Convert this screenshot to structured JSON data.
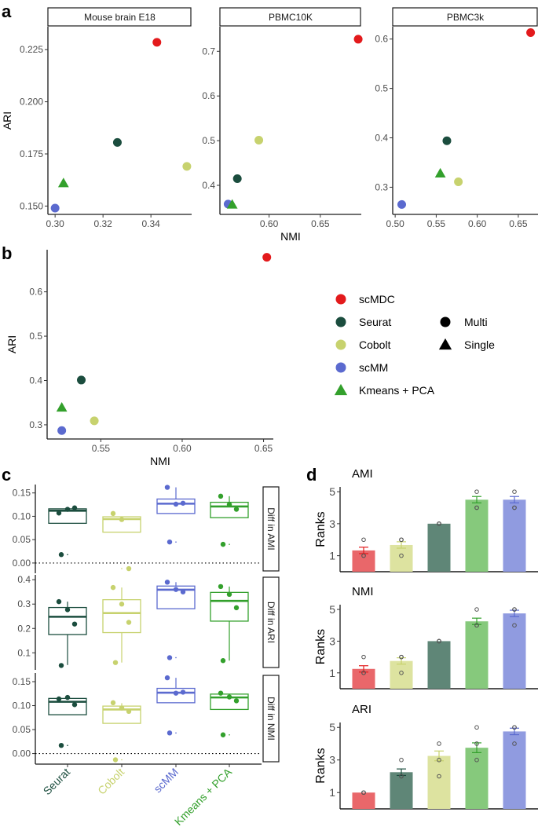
{
  "panel_letters": {
    "a": "a",
    "b": "b",
    "c": "c",
    "d": "d"
  },
  "methods": [
    {
      "name": "scMDC",
      "color": "#e31a1c",
      "shape": "circle"
    },
    {
      "name": "Seurat",
      "color": "#1b4d3e",
      "shape": "circle"
    },
    {
      "name": "Cobolt",
      "color": "#c7d26e",
      "shape": "circle"
    },
    {
      "name": "scMM",
      "color": "#5b6acf",
      "shape": "circle"
    },
    {
      "name": "Kmeans + PCA",
      "color": "#33a02c",
      "shape": "triangle"
    }
  ],
  "shape_legend": [
    {
      "label": "Multi",
      "shape": "circle"
    },
    {
      "label": "Single",
      "shape": "triangle"
    }
  ],
  "chart_data": [
    {
      "id": "a1",
      "type": "scatter",
      "title": "Mouse brain E18",
      "xlabel": "",
      "ylabel": "ARI",
      "xlim": [
        0.297,
        0.357
      ],
      "ylim": [
        0.146,
        0.236
      ],
      "xticks": [
        {
          "v": 0.3,
          "l": "0.30"
        },
        {
          "v": 0.32,
          "l": "0.32"
        },
        {
          "v": 0.34,
          "l": "0.34"
        }
      ],
      "yticks": [
        {
          "v": 0.15,
          "l": "0.150"
        },
        {
          "v": 0.175,
          "l": "0.175"
        },
        {
          "v": 0.2,
          "l": "0.200"
        },
        {
          "v": 0.225,
          "l": "0.225"
        }
      ],
      "points": [
        {
          "method": "scMDC",
          "x": 0.3425,
          "y": 0.2285
        },
        {
          "method": "Seurat",
          "x": 0.326,
          "y": 0.1805
        },
        {
          "method": "Cobolt",
          "x": 0.355,
          "y": 0.169
        },
        {
          "method": "scMM",
          "x": 0.3,
          "y": 0.149
        },
        {
          "method": "Kmeans + PCA",
          "x": 0.3035,
          "y": 0.161
        }
      ]
    },
    {
      "id": "a2",
      "type": "scatter",
      "title": "PBMC10K",
      "xlabel": "NMI",
      "ylabel": "",
      "xlim": [
        0.552,
        0.69
      ],
      "ylim": [
        0.335,
        0.755
      ],
      "xticks": [
        {
          "v": 0.6,
          "l": "0.60"
        },
        {
          "v": 0.65,
          "l": "0.65"
        }
      ],
      "yticks": [
        {
          "v": 0.4,
          "l": "0.4"
        },
        {
          "v": 0.5,
          "l": "0.5"
        },
        {
          "v": 0.6,
          "l": "0.6"
        },
        {
          "v": 0.7,
          "l": "0.7"
        }
      ],
      "points": [
        {
          "method": "scMDC",
          "x": 0.687,
          "y": 0.727
        },
        {
          "method": "Seurat",
          "x": 0.569,
          "y": 0.415
        },
        {
          "method": "Cobolt",
          "x": 0.59,
          "y": 0.501
        },
        {
          "method": "scMM",
          "x": 0.56,
          "y": 0.358
        },
        {
          "method": "Kmeans + PCA",
          "x": 0.564,
          "y": 0.357
        }
      ]
    },
    {
      "id": "a3",
      "type": "scatter",
      "title": "PBMC3k",
      "xlabel": "",
      "ylabel": "",
      "xlim": [
        0.497,
        0.674
      ],
      "ylim": [
        0.245,
        0.625
      ],
      "xticks": [
        {
          "v": 0.5,
          "l": "0.50"
        },
        {
          "v": 0.55,
          "l": "0.55"
        },
        {
          "v": 0.6,
          "l": "0.60"
        },
        {
          "v": 0.65,
          "l": "0.65"
        }
      ],
      "yticks": [
        {
          "v": 0.3,
          "l": "0.3"
        },
        {
          "v": 0.4,
          "l": "0.4"
        },
        {
          "v": 0.5,
          "l": "0.5"
        },
        {
          "v": 0.6,
          "l": "0.6"
        }
      ],
      "points": [
        {
          "method": "scMDC",
          "x": 0.665,
          "y": 0.613
        },
        {
          "method": "Seurat",
          "x": 0.563,
          "y": 0.394
        },
        {
          "method": "Cobolt",
          "x": 0.577,
          "y": 0.311
        },
        {
          "method": "scMM",
          "x": 0.508,
          "y": 0.265
        },
        {
          "method": "Kmeans + PCA",
          "x": 0.555,
          "y": 0.328
        }
      ]
    },
    {
      "id": "b",
      "type": "scatter",
      "title": "",
      "xlabel": "NMI",
      "ylabel": "ARI",
      "xlim": [
        0.517,
        0.656
      ],
      "ylim": [
        0.268,
        0.695
      ],
      "xticks": [
        {
          "v": 0.55,
          "l": "0.55"
        },
        {
          "v": 0.6,
          "l": "0.60"
        },
        {
          "v": 0.65,
          "l": "0.65"
        }
      ],
      "yticks": [
        {
          "v": 0.3,
          "l": "0.3"
        },
        {
          "v": 0.4,
          "l": "0.4"
        },
        {
          "v": 0.5,
          "l": "0.5"
        },
        {
          "v": 0.6,
          "l": "0.6"
        }
      ],
      "points": [
        {
          "method": "scMDC",
          "x": 0.652,
          "y": 0.678
        },
        {
          "method": "Seurat",
          "x": 0.538,
          "y": 0.401
        },
        {
          "method": "Cobolt",
          "x": 0.546,
          "y": 0.309
        },
        {
          "method": "scMM",
          "x": 0.526,
          "y": 0.287
        },
        {
          "method": "Kmeans + PCA",
          "x": 0.526,
          "y": 0.339
        }
      ]
    },
    {
      "id": "c",
      "type": "box",
      "xlabel": "",
      "ylabel": "",
      "categories": [
        "Seurat",
        "Cobolt",
        "scMM",
        "Kmeans + PCA"
      ],
      "category_colors": [
        "#1b4d3e",
        "#c7d26e",
        "#5b6acf",
        "#33a02c"
      ],
      "facets": [
        {
          "label": "Diff in AMI",
          "ylim": [
            -0.022,
            0.168
          ],
          "hline": 0,
          "yticks": [
            {
              "v": 0.0,
              "l": "0.00"
            },
            {
              "v": 0.05,
              "l": "0.05"
            },
            {
              "v": 0.1,
              "l": "0.10"
            },
            {
              "v": 0.15,
              "l": "0.15"
            }
          ],
          "boxes": [
            {
              "q1": 0.085,
              "med": 0.112,
              "q3": 0.116,
              "lo": 0.085,
              "hi": 0.116,
              "outliers": [
                0.018
              ],
              "points": [
                0.107,
                0.115,
                0.118,
                0.018
              ]
            },
            {
              "q1": 0.066,
              "med": 0.094,
              "q3": 0.099,
              "lo": 0.066,
              "hi": 0.099,
              "outliers": [
                -0.012
              ],
              "points": [
                0.106,
                0.093,
                -0.012
              ]
            },
            {
              "q1": 0.106,
              "med": 0.127,
              "q3": 0.137,
              "lo": 0.106,
              "hi": 0.162,
              "outliers": [
                0.045
              ],
              "points": [
                0.162,
                0.126,
                0.128,
                0.045
              ]
            },
            {
              "q1": 0.097,
              "med": 0.121,
              "q3": 0.13,
              "lo": 0.097,
              "hi": 0.143,
              "outliers": [
                0.04
              ],
              "points": [
                0.143,
                0.125,
                0.115,
                0.04
              ]
            }
          ]
        },
        {
          "label": "Diff in ARI",
          "ylim": [
            0.03,
            0.42
          ],
          "hline": null,
          "yticks": [
            {
              "v": 0.1,
              "l": "0.1"
            },
            {
              "v": 0.2,
              "l": "0.2"
            },
            {
              "v": 0.3,
              "l": "0.3"
            },
            {
              "v": 0.4,
              "l": "0.4"
            }
          ],
          "boxes": [
            {
              "q1": 0.175,
              "med": 0.248,
              "q3": 0.286,
              "lo": 0.05,
              "hi": 0.31,
              "outliers": [],
              "points": [
                0.31,
                0.277,
                0.218,
                0.048
              ]
            },
            {
              "q1": 0.183,
              "med": 0.263,
              "q3": 0.318,
              "lo": 0.06,
              "hi": 0.368,
              "outliers": [],
              "points": [
                0.368,
                0.3,
                0.225,
                0.06
              ]
            },
            {
              "q1": 0.281,
              "med": 0.359,
              "q3": 0.374,
              "lo": 0.281,
              "hi": 0.39,
              "outliers": [
                0.08
              ],
              "points": [
                0.39,
                0.36,
                0.35,
                0.08
              ]
            },
            {
              "q1": 0.23,
              "med": 0.313,
              "q3": 0.348,
              "lo": 0.068,
              "hi": 0.372,
              "outliers": [],
              "points": [
                0.372,
                0.34,
                0.285,
                0.068
              ]
            }
          ]
        },
        {
          "label": "Diff in NMI",
          "ylim": [
            -0.022,
            0.168
          ],
          "hline": 0,
          "yticks": [
            {
              "v": 0.0,
              "l": "0.00"
            },
            {
              "v": 0.05,
              "l": "0.05"
            },
            {
              "v": 0.1,
              "l": "0.10"
            },
            {
              "v": 0.15,
              "l": "0.15"
            }
          ],
          "boxes": [
            {
              "q1": 0.081,
              "med": 0.108,
              "q3": 0.115,
              "lo": 0.081,
              "hi": 0.115,
              "outliers": [
                0.017
              ],
              "points": [
                0.114,
                0.117,
                0.102,
                0.017
              ]
            },
            {
              "q1": 0.063,
              "med": 0.092,
              "q3": 0.099,
              "lo": 0.063,
              "hi": 0.105,
              "outliers": [
                -0.013
              ],
              "points": [
                0.106,
                0.095,
                0.088,
                -0.013
              ]
            },
            {
              "q1": 0.106,
              "med": 0.127,
              "q3": 0.136,
              "lo": 0.106,
              "hi": 0.158,
              "outliers": [
                0.043
              ],
              "points": [
                0.158,
                0.126,
                0.128,
                0.043
              ]
            },
            {
              "q1": 0.092,
              "med": 0.117,
              "q3": 0.124,
              "lo": 0.092,
              "hi": 0.124,
              "outliers": [
                0.039
              ],
              "points": [
                0.126,
                0.118,
                0.11,
                0.039
              ]
            }
          ]
        }
      ]
    },
    {
      "id": "d",
      "type": "bar",
      "ylabel": "Ranks",
      "ylim": [
        0,
        5.3
      ],
      "yticks": [
        {
          "v": 1,
          "l": "1"
        },
        {
          "v": 3,
          "l": "3"
        },
        {
          "v": 5,
          "l": "5"
        }
      ],
      "subplots": [
        {
          "title": "AMI",
          "bars": [
            {
              "method": "scMDC",
              "mean": 1.33,
              "se": 0.2,
              "points": [
                1,
                1,
                2
              ]
            },
            {
              "method": "Cobolt",
              "mean": 1.67,
              "se": 0.2,
              "points": [
                2,
                2,
                1
              ]
            },
            {
              "method": "Seurat",
              "mean": 3.0,
              "se": 0.0,
              "points": [
                3,
                3,
                3
              ]
            },
            {
              "method": "Kmeans + PCA",
              "mean": 4.5,
              "se": 0.2,
              "points": [
                5,
                4,
                4
              ]
            },
            {
              "method": "scMM",
              "mean": 4.5,
              "se": 0.2,
              "points": [
                5,
                4,
                4
              ]
            }
          ]
        },
        {
          "title": "NMI",
          "bars": [
            {
              "method": "scMDC",
              "mean": 1.25,
              "se": 0.2,
              "points": [
                1,
                1,
                2
              ]
            },
            {
              "method": "Cobolt",
              "mean": 1.75,
              "se": 0.2,
              "points": [
                2,
                2,
                1
              ]
            },
            {
              "method": "Seurat",
              "mean": 3.0,
              "se": 0.0,
              "points": [
                3,
                3,
                3
              ]
            },
            {
              "method": "Kmeans + PCA",
              "mean": 4.25,
              "se": 0.2,
              "points": [
                5,
                4,
                4
              ]
            },
            {
              "method": "scMM",
              "mean": 4.75,
              "se": 0.2,
              "points": [
                5,
                5,
                4
              ]
            }
          ]
        },
        {
          "title": "ARI",
          "bars": [
            {
              "method": "scMDC",
              "mean": 1.0,
              "se": 0.0,
              "points": [
                1,
                1,
                1
              ]
            },
            {
              "method": "Seurat",
              "mean": 2.25,
              "se": 0.2,
              "points": [
                3,
                2,
                2
              ]
            },
            {
              "method": "Cobolt",
              "mean": 3.25,
              "se": 0.3,
              "points": [
                4,
                3,
                2
              ]
            },
            {
              "method": "Kmeans + PCA",
              "mean": 3.75,
              "se": 0.3,
              "points": [
                5,
                4,
                3
              ]
            },
            {
              "method": "scMM",
              "mean": 4.75,
              "se": 0.2,
              "points": [
                5,
                5,
                4
              ]
            }
          ]
        }
      ]
    }
  ]
}
